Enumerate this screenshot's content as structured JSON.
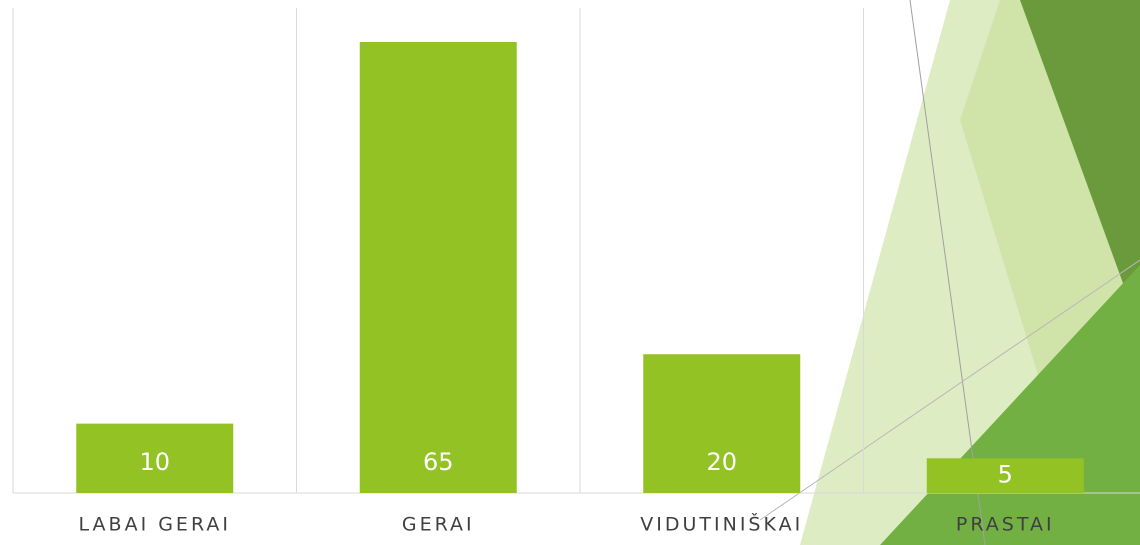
{
  "chart_data": {
    "type": "bar",
    "categories": [
      "LABAI GERAI",
      "GERAI",
      "VIDUTINIŠKAI",
      "PRASTAI"
    ],
    "values": [
      10,
      65,
      20,
      5
    ],
    "color": "#93c225"
  }
}
